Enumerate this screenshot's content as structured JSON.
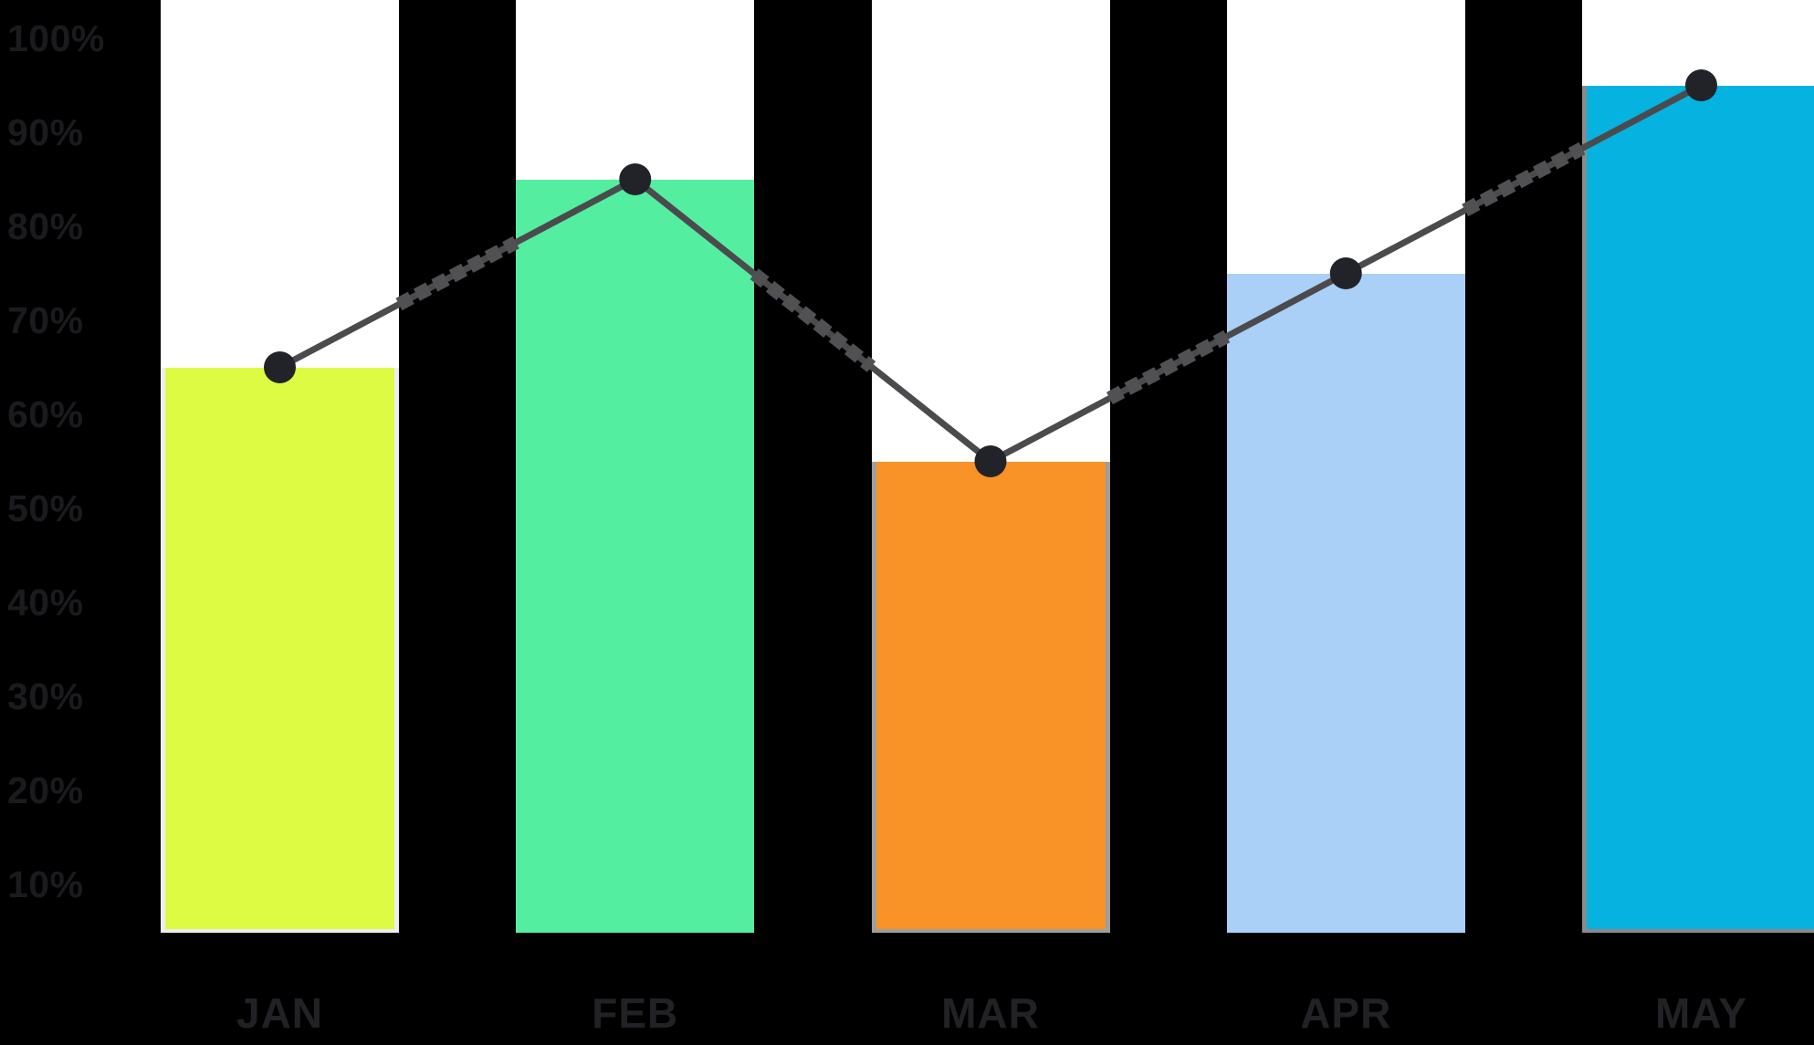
{
  "chart_data": {
    "type": "bar",
    "title": "",
    "xlabel": "",
    "ylabel": "",
    "categories": [
      "JAN",
      "FEB",
      "MAR",
      "APR",
      "MAY"
    ],
    "values": [
      65,
      85,
      55,
      75,
      95
    ],
    "unit": "%",
    "series": [
      {
        "name": "monthly-percentage-bars",
        "type": "bar",
        "values": [
          65,
          85,
          55,
          75,
          95
        ]
      },
      {
        "name": "trend-line-overlay",
        "type": "line",
        "values": [
          65,
          85,
          55,
          75,
          95
        ],
        "markers": "filled-dots"
      }
    ],
    "ylim": [
      0,
      100
    ],
    "y_tick_values": [
      100,
      90,
      80,
      70,
      60,
      50,
      40,
      30,
      20,
      10
    ],
    "y_tick_labels": [
      "100%",
      "90%",
      "80%",
      "70%",
      "60%",
      "50%",
      "40%",
      "30%",
      "20%",
      "10%"
    ],
    "grid": false,
    "legend": false,
    "layout_hints": {
      "bar_track_full_height": true,
      "line_style_over_tracks": "thin-solid",
      "line_style_over_gaps": "thick-dashed"
    }
  },
  "colors": {
    "background": "#000000",
    "track": "#FFFFFF",
    "bars": [
      "#DCFB42",
      "#53EEA0",
      "#F99327",
      "#AAD0F7",
      "#06B2DF"
    ],
    "bar_edges": [
      "#EDEDF0",
      null,
      "#9E9EA0",
      null,
      "#8A8A8C"
    ],
    "line": "#4B4B4E",
    "line_dash": "#515154",
    "dot": "#222329",
    "y_tick_text": "#1B1B1F",
    "x_tick_text": "#222226"
  }
}
